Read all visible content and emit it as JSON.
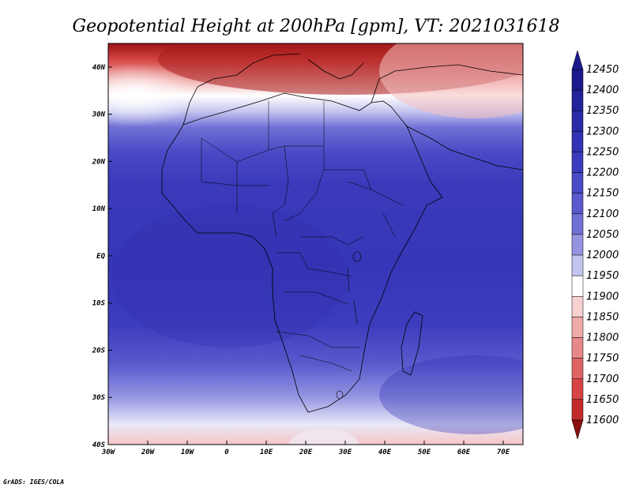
{
  "title": "Geopotential Height at 200hPa [gpm], VT: 2021031618",
  "credit": "GrADS: IGES/COLA",
  "lon_ticks": [
    "30W",
    "20W",
    "10W",
    "0",
    "10E",
    "20E",
    "30E",
    "40E",
    "50E",
    "60E",
    "70E"
  ],
  "lat_ticks": [
    "40N",
    "30N",
    "20N",
    "10N",
    "EQ",
    "10S",
    "20S",
    "30S",
    "40S"
  ],
  "map_extent": {
    "lon_min": -30,
    "lon_max": 75,
    "lat_min": -40,
    "lat_max": 45
  },
  "colorbar": {
    "labels": [
      "12450",
      "12400",
      "12350",
      "12300",
      "12250",
      "12200",
      "12150",
      "12100",
      "12050",
      "12000",
      "11950",
      "11900",
      "11850",
      "11800",
      "11750",
      "11700",
      "11650",
      "11600"
    ],
    "colors": [
      "#1a1a8c",
      "#22229a",
      "#2a2aa8",
      "#3232b4",
      "#3c3cbe",
      "#4a4ac6",
      "#5a5acd",
      "#7070d6",
      "#9494e2",
      "#c4c4f0",
      "#ffffff",
      "#f7d0d0",
      "#f0aaaa",
      "#e88888",
      "#e06464",
      "#d64444",
      "#c42c2c",
      "#a81c1c",
      "#8a1010"
    ]
  }
}
